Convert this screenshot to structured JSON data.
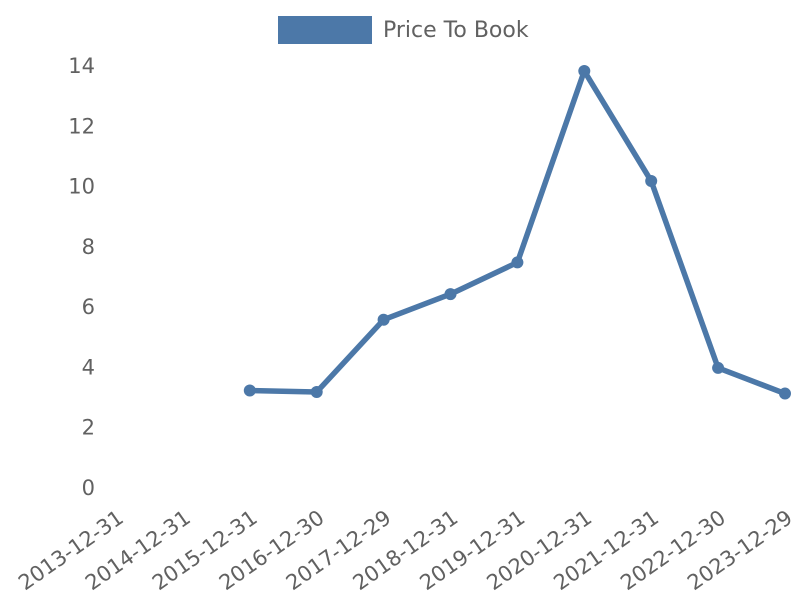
{
  "legend": {
    "label": "Price To Book",
    "swatch_color": "#4c78a8"
  },
  "colors": {
    "line": "#4c78a8",
    "marker": "#4c78a8",
    "tick_text": "#616161",
    "background": "#ffffff"
  },
  "chart_data": {
    "type": "line",
    "title": "",
    "xlabel": "",
    "ylabel": "",
    "legend_position": "top-center",
    "grid": false,
    "axes_spines": false,
    "categories": [
      "2013-12-31",
      "2014-12-31",
      "2015-12-31",
      "2016-12-30",
      "2017-12-29",
      "2018-12-31",
      "2019-12-31",
      "2020-12-31",
      "2021-12-31",
      "2022-12-30",
      "2023-12-29"
    ],
    "series": [
      {
        "name": "Price To Book",
        "color": "#4c78a8",
        "marker": "circle",
        "values": [
          null,
          null,
          3.2,
          3.15,
          5.55,
          6.4,
          7.45,
          13.8,
          10.15,
          3.95,
          3.1
        ]
      }
    ],
    "ylim": [
      0,
      14
    ],
    "yticks": [
      0,
      2,
      4,
      6,
      8,
      10,
      12,
      14
    ]
  }
}
